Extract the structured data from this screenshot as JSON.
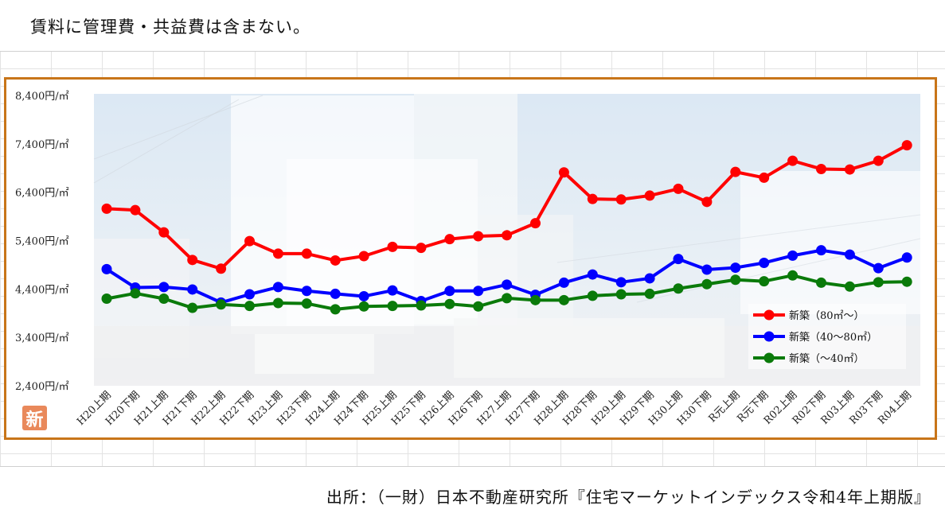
{
  "header": {
    "note": "賃料に管理費・共益費は含まない。"
  },
  "footer": {
    "source": "出所：（一財）日本不動産研究所『住宅マーケットインデックス令和4年上期版』"
  },
  "badge": {
    "label": "新"
  },
  "chart_data": {
    "type": "line",
    "title": "",
    "xlabel": "",
    "ylabel": "",
    "ylim": [
      2400,
      8400
    ],
    "yticks": [
      {
        "value": 8400,
        "label": "8,400円/㎡"
      },
      {
        "value": 7400,
        "label": "7,400円/㎡"
      },
      {
        "value": 6400,
        "label": "6,400円/㎡"
      },
      {
        "value": 5400,
        "label": "5,400円/㎡"
      },
      {
        "value": 4400,
        "label": "4,400円/㎡"
      },
      {
        "value": 3400,
        "label": "3,400円/㎡"
      },
      {
        "value": 2400,
        "label": "2,400円/㎡"
      }
    ],
    "categories": [
      "H20上期",
      "H20下期",
      "H21上期",
      "H21下期",
      "H22上期",
      "H22下期",
      "H23上期",
      "H23下期",
      "H24上期",
      "H24下期",
      "H25上期",
      "H25下期",
      "H26上期",
      "H26下期",
      "H27上期",
      "H27下期",
      "H28上期",
      "H28下期",
      "H29上期",
      "H29下期",
      "H30上期",
      "H30下期",
      "R元上期",
      "R元下期",
      "R02上期",
      "R02下期",
      "R03上期",
      "R03下期",
      "R04上期"
    ],
    "series": [
      {
        "name": "新築（80㎡～）",
        "color": "#ff0000",
        "values": [
          6060,
          6030,
          5570,
          5000,
          4820,
          5390,
          5130,
          5130,
          4990,
          5080,
          5270,
          5250,
          5430,
          5490,
          5510,
          5760,
          6810,
          6260,
          6250,
          6330,
          6470,
          6200,
          6820,
          6700,
          7050,
          6880,
          6870,
          7050,
          7370
        ]
      },
      {
        "name": "新築（40～80㎡）",
        "color": "#0000ff",
        "values": [
          4810,
          4430,
          4440,
          4390,
          4120,
          4290,
          4440,
          4360,
          4300,
          4250,
          4370,
          4150,
          4360,
          4360,
          4490,
          4280,
          4530,
          4700,
          4540,
          4620,
          5020,
          4800,
          4840,
          4940,
          5090,
          5200,
          5110,
          4830,
          5050
        ]
      },
      {
        "name": "新築（～40㎡）",
        "color": "#0a7a0a",
        "values": [
          4200,
          4310,
          4200,
          4010,
          4080,
          4050,
          4110,
          4100,
          3980,
          4040,
          4050,
          4060,
          4090,
          4040,
          4210,
          4170,
          4170,
          4260,
          4290,
          4300,
          4410,
          4500,
          4590,
          4560,
          4680,
          4530,
          4450,
          4540,
          4550
        ]
      }
    ],
    "grid": false,
    "legend_position": "bottom-right"
  }
}
